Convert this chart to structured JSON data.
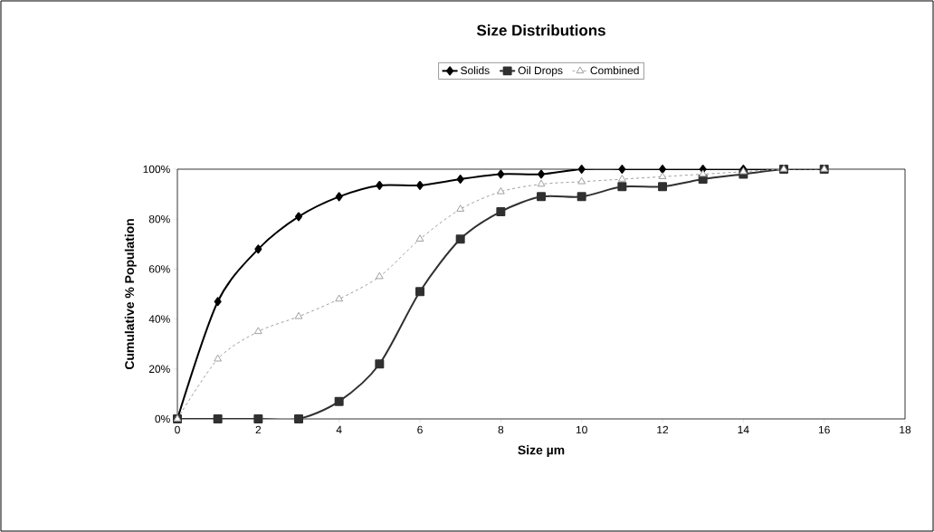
{
  "chart_data": {
    "type": "line",
    "title": "Size Distributions",
    "xlabel": "Size µm",
    "ylabel": "Cumulative % Population",
    "x": [
      0,
      1,
      2,
      3,
      4,
      5,
      6,
      7,
      8,
      9,
      10,
      11,
      12,
      13,
      14,
      15,
      16
    ],
    "series": [
      {
        "name": "Solids",
        "color": "#000000",
        "marker": "diamond",
        "line_style": "solid",
        "values": [
          0,
          47,
          68,
          81,
          89,
          93.5,
          93.5,
          96,
          98,
          98,
          100,
          100,
          100,
          100,
          100,
          100,
          100
        ]
      },
      {
        "name": "Oil Drops",
        "color": "#303030",
        "marker": "square",
        "line_style": "solid",
        "values": [
          0,
          0,
          0,
          0,
          7,
          22,
          51,
          72,
          83,
          89,
          89,
          93,
          93,
          96,
          98,
          100,
          100
        ]
      },
      {
        "name": "Combined",
        "color": "#a0a0a0",
        "marker": "triangle",
        "line_style": "dashed",
        "values": [
          0,
          24,
          35,
          41,
          48,
          57,
          72,
          84,
          91,
          94,
          95,
          96,
          97,
          98,
          99,
          100,
          100
        ]
      }
    ],
    "xlim": [
      0,
      18
    ],
    "xticks": [
      0,
      2,
      4,
      6,
      8,
      10,
      12,
      14,
      16,
      18
    ],
    "ylim": [
      0,
      100
    ],
    "yticks": [
      {
        "value": 0,
        "label": "0%"
      },
      {
        "value": 20,
        "label": "20%"
      },
      {
        "value": 40,
        "label": "40%"
      },
      {
        "value": 60,
        "label": "60%"
      },
      {
        "value": 80,
        "label": "80%"
      },
      {
        "value": 100,
        "label": "100%"
      }
    ],
    "grid": false,
    "legend": "top"
  }
}
